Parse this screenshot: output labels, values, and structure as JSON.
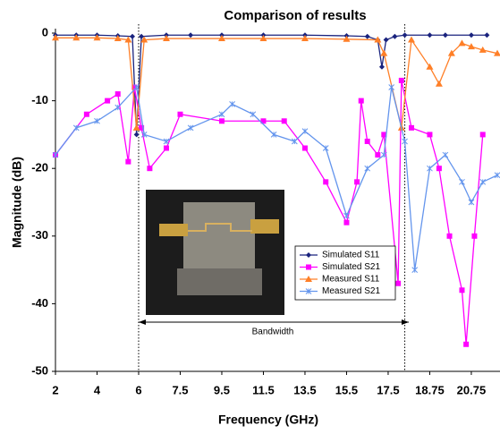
{
  "chart_data": {
    "type": "line",
    "title": "Comparison of results",
    "xlabel": "Frequency (GHz)",
    "ylabel": "Magnitude (dB)",
    "xlim": [
      2,
      22
    ],
    "ylim": [
      -50,
      0
    ],
    "xticks": [
      2,
      4,
      6,
      7.5,
      9.5,
      11.5,
      13.5,
      15.5,
      17.5,
      18.75,
      20.75
    ],
    "yticks": [
      0,
      -10,
      -20,
      -30,
      -40,
      -50
    ],
    "legend": "right",
    "annotation": "Bandwidth",
    "bandwidth_range": [
      6,
      18
    ],
    "series": [
      {
        "name": "Simulated S11",
        "color": "#1a237e",
        "marker": "diamond",
        "x": [
          2,
          3,
          4,
          5,
          5.7,
          5.9,
          6.1,
          7,
          8,
          9.5,
          11.5,
          13.5,
          15.5,
          16.5,
          17,
          17.2,
          17.4,
          17.7,
          18,
          18.75,
          19.5,
          20.75,
          21.5
        ],
        "values": [
          -0.3,
          -0.3,
          -0.3,
          -0.4,
          -0.5,
          -15,
          -0.5,
          -0.3,
          -0.3,
          -0.3,
          -0.3,
          -0.3,
          -0.4,
          -0.5,
          -1,
          -5,
          -1,
          -0.5,
          -0.3,
          -0.3,
          -0.3,
          -0.3,
          -0.3
        ]
      },
      {
        "name": "Simulated S21",
        "color": "#ff00ff",
        "marker": "square",
        "x": [
          2,
          3.5,
          4.5,
          5,
          5.5,
          5.8,
          6.1,
          6.4,
          7,
          7.5,
          9.5,
          11.5,
          12.5,
          13.5,
          14.5,
          15.5,
          16,
          16.2,
          16.5,
          17,
          17.3,
          17.8,
          17.9,
          18.2,
          18.75,
          19.2,
          19.7,
          20.3,
          20.5,
          20.9,
          21.3
        ],
        "values": [
          -18,
          -12,
          -10,
          -9,
          -19,
          -8,
          -14,
          -20,
          -17,
          -12,
          -13,
          -13,
          -13,
          -17,
          -22,
          -28,
          -22,
          -10,
          -16,
          -18,
          -15,
          -37,
          -7,
          -14,
          -15,
          -20,
          -30,
          -38,
          -46,
          -30,
          -15
        ]
      },
      {
        "name": "Measured S11",
        "color": "#ff7f27",
        "marker": "triangle",
        "x": [
          2,
          3,
          4,
          5,
          5.5,
          5.9,
          6.2,
          7,
          9.5,
          11.5,
          13.5,
          15.5,
          17,
          17.3,
          17.9,
          18.2,
          18.75,
          19.2,
          19.8,
          20.3,
          20.75,
          21.3,
          22
        ],
        "values": [
          -0.7,
          -0.7,
          -0.7,
          -0.8,
          -1,
          -14,
          -1,
          -0.8,
          -0.8,
          -0.8,
          -0.8,
          -0.9,
          -1,
          -3,
          -14,
          -1,
          -5,
          -7.5,
          -3,
          -1.5,
          -2,
          -2.5,
          -3
        ]
      },
      {
        "name": "Measured S21",
        "color": "#6495ed",
        "marker": "star",
        "x": [
          2,
          3,
          4,
          5,
          5.9,
          6.2,
          7,
          8,
          9.5,
          10,
          11,
          12,
          13,
          13.5,
          14.5,
          15.5,
          16.5,
          17.3,
          17.6,
          18,
          18.3,
          18.75,
          19.5,
          20.3,
          20.75,
          21.3,
          22
        ],
        "values": [
          -18,
          -14,
          -13,
          -11,
          -8,
          -15,
          -16,
          -14,
          -12,
          -10.5,
          -12,
          -15,
          -16,
          -14.5,
          -17,
          -27,
          -20,
          -18,
          -8,
          -16,
          -35,
          -20,
          -18,
          -22,
          -25,
          -22,
          -21
        ]
      }
    ]
  }
}
